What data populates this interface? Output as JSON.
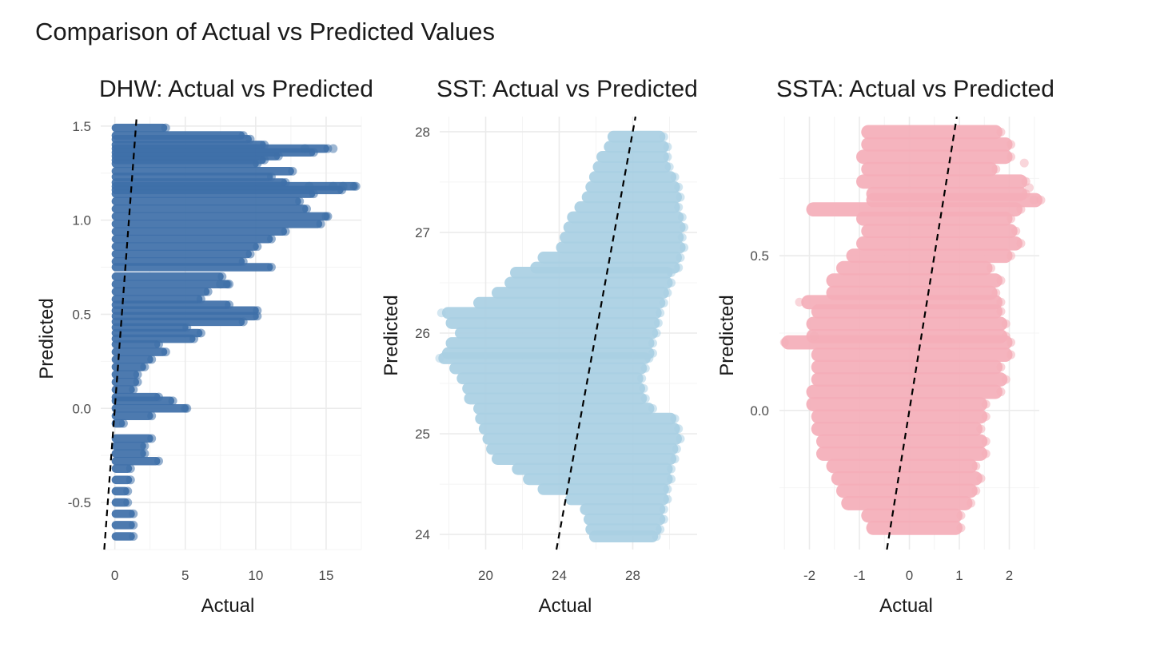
{
  "figure_title": "Comparison of Actual vs Predicted Values",
  "chart_data": [
    {
      "type": "scatter",
      "title": "DHW: Actual vs Predicted",
      "xlabel": "Actual",
      "ylabel": "Predicted",
      "xlim": [
        -1,
        17.5
      ],
      "ylim": [
        -0.75,
        1.55
      ],
      "xticks": [
        0,
        5,
        10,
        15
      ],
      "yticks": [
        -0.5,
        0.0,
        0.5,
        1.0,
        1.5
      ],
      "ytick_labels": [
        "-0.5",
        "0.0",
        "0.5",
        "1.0",
        "1.5"
      ],
      "grid": true,
      "color": "#3E6FA8",
      "reference_line": {
        "slope": 1,
        "intercept": 0,
        "style": "dashed"
      },
      "bands": [
        [
          1.49,
          0,
          3.5
        ],
        [
          1.45,
          0,
          9.0
        ],
        [
          1.43,
          0,
          9.5
        ],
        [
          1.4,
          0,
          10.5
        ],
        [
          1.38,
          0,
          15.0
        ],
        [
          1.36,
          0,
          14.0
        ],
        [
          1.34,
          0,
          11.5
        ],
        [
          1.32,
          0,
          10.5
        ],
        [
          1.3,
          0,
          10.0
        ],
        [
          1.26,
          0,
          12.5
        ],
        [
          1.23,
          0,
          11.0
        ],
        [
          1.2,
          0,
          12.0
        ],
        [
          1.18,
          0,
          17.0
        ],
        [
          1.16,
          0,
          16.0
        ],
        [
          1.14,
          0,
          14.0
        ],
        [
          1.1,
          0,
          13.0
        ],
        [
          1.06,
          0,
          13.5
        ],
        [
          1.02,
          0,
          15.0
        ],
        [
          0.98,
          0,
          14.5
        ],
        [
          0.94,
          0,
          12.0
        ],
        [
          0.9,
          0,
          11.0
        ],
        [
          0.86,
          0,
          10.0
        ],
        [
          0.82,
          0,
          9.5
        ],
        [
          0.78,
          0,
          9.0
        ],
        [
          0.75,
          0,
          11.0
        ],
        [
          0.7,
          0,
          7.5
        ],
        [
          0.66,
          0,
          8.0
        ],
        [
          0.62,
          0,
          6.5
        ],
        [
          0.58,
          0,
          6.0
        ],
        [
          0.55,
          0,
          8.0
        ],
        [
          0.52,
          0,
          10.0
        ],
        [
          0.49,
          0,
          10.0
        ],
        [
          0.46,
          0,
          9.0
        ],
        [
          0.43,
          0,
          5.0
        ],
        [
          0.4,
          0,
          6.0
        ],
        [
          0.37,
          0,
          5.5
        ],
        [
          0.34,
          0,
          3.0
        ],
        [
          0.3,
          0,
          3.5
        ],
        [
          0.26,
          0,
          2.5
        ],
        [
          0.22,
          0,
          2.0
        ],
        [
          0.18,
          0,
          1.5
        ],
        [
          0.14,
          0,
          1.5
        ],
        [
          0.1,
          0,
          1.2
        ],
        [
          0.06,
          0,
          3.0
        ],
        [
          0.04,
          0,
          4.0
        ],
        [
          0.0,
          0,
          5.0
        ],
        [
          -0.04,
          0,
          2.5
        ],
        [
          -0.08,
          0,
          0.5
        ],
        [
          -0.16,
          0,
          2.5
        ],
        [
          -0.2,
          0,
          2.0
        ],
        [
          -0.24,
          0,
          2.0
        ],
        [
          -0.28,
          0,
          3.0
        ],
        [
          -0.32,
          0,
          1.0
        ],
        [
          -0.38,
          0,
          1.0
        ],
        [
          -0.44,
          0,
          0.8
        ],
        [
          -0.5,
          0,
          0.8
        ],
        [
          -0.56,
          0,
          1.2
        ],
        [
          -0.62,
          0,
          1.2
        ],
        [
          -0.68,
          0,
          1.2
        ]
      ],
      "outliers": [
        [
          13.5,
          1.38
        ],
        [
          15.5,
          1.38
        ],
        [
          13.8,
          1.18
        ],
        [
          15.5,
          1.18
        ],
        [
          16.2,
          1.18
        ],
        [
          17.0,
          1.18
        ],
        [
          15.0,
          1.02
        ],
        [
          5.0,
          0.0
        ],
        [
          7.5,
          0.66
        ],
        [
          8.0,
          0.66
        ]
      ]
    },
    {
      "type": "scatter",
      "title": "SST: Actual vs Predicted",
      "xlabel": "Actual",
      "ylabel": "Predicted",
      "xlim": [
        17.5,
        31.5
      ],
      "ylim": [
        23.85,
        28.15
      ],
      "xticks": [
        20,
        24,
        28
      ],
      "yticks": [
        24,
        25,
        26,
        27,
        28
      ],
      "ytick_labels": [
        "24",
        "25",
        "26",
        "27",
        "28"
      ],
      "grid": true,
      "color": "#A9CFE3",
      "reference_line": {
        "slope": 1,
        "intercept": 0,
        "style": "dashed"
      },
      "bands": [
        [
          27.95,
          26.8,
          29.6
        ],
        [
          27.85,
          26.6,
          29.8
        ],
        [
          27.75,
          26.2,
          29.8
        ],
        [
          27.65,
          26.0,
          29.9
        ],
        [
          27.55,
          25.8,
          30.2
        ],
        [
          27.45,
          25.6,
          30.4
        ],
        [
          27.35,
          25.4,
          30.5
        ],
        [
          27.25,
          25.0,
          30.4
        ],
        [
          27.15,
          24.6,
          30.6
        ],
        [
          27.05,
          24.4,
          30.7
        ],
        [
          26.95,
          24.2,
          30.6
        ],
        [
          26.85,
          24.0,
          30.7
        ],
        [
          26.75,
          23.0,
          30.5
        ],
        [
          26.65,
          22.6,
          30.4
        ],
        [
          26.6,
          21.5,
          30.0
        ],
        [
          26.5,
          21.2,
          30.0
        ],
        [
          26.4,
          20.5,
          29.8
        ],
        [
          26.3,
          19.5,
          29.6
        ],
        [
          26.2,
          17.8,
          29.4
        ],
        [
          26.1,
          18.0,
          29.3
        ],
        [
          26.0,
          18.5,
          29.2
        ],
        [
          25.9,
          18.0,
          29.0
        ],
        [
          25.8,
          17.8,
          29.0
        ],
        [
          25.75,
          17.6,
          28.8
        ],
        [
          25.65,
          18.2,
          28.6
        ],
        [
          25.55,
          18.6,
          28.4
        ],
        [
          25.45,
          18.9,
          28.5
        ],
        [
          25.35,
          19.0,
          28.6
        ],
        [
          25.25,
          19.5,
          29.0
        ],
        [
          25.15,
          19.6,
          30.2
        ],
        [
          25.05,
          19.8,
          30.4
        ],
        [
          24.95,
          20.0,
          30.5
        ],
        [
          24.85,
          20.2,
          30.3
        ],
        [
          24.75,
          20.5,
          30.2
        ],
        [
          24.65,
          21.6,
          30.0
        ],
        [
          24.55,
          22.2,
          30.0
        ],
        [
          24.45,
          23.0,
          29.8
        ],
        [
          24.35,
          24.5,
          29.8
        ],
        [
          24.25,
          25.3,
          29.6
        ],
        [
          24.15,
          25.5,
          29.6
        ],
        [
          24.05,
          25.6,
          29.4
        ],
        [
          23.98,
          25.8,
          29.2
        ]
      ],
      "outliers": [
        [
          17.6,
          26.2
        ],
        [
          17.5,
          25.75
        ]
      ]
    },
    {
      "type": "scatter",
      "title": "SSTA: Actual vs Predicted",
      "xlabel": "Actual",
      "ylabel": "Predicted",
      "xlim": [
        -2.6,
        2.6
      ],
      "ylim": [
        -0.45,
        0.95
      ],
      "xticks": [
        -2,
        -1,
        0,
        1,
        2
      ],
      "yticks": [
        0.0,
        0.5
      ],
      "ytick_labels": [
        "0.0",
        "0.5"
      ],
      "grid": true,
      "color": "#F4AEB8",
      "reference_line": {
        "slope": 1,
        "intercept": 0,
        "style": "dashed"
      },
      "bands": [
        [
          0.9,
          -0.9,
          1.8
        ],
        [
          0.86,
          -0.9,
          2.0
        ],
        [
          0.82,
          -1.0,
          2.0
        ],
        [
          0.78,
          -0.9,
          1.7
        ],
        [
          0.74,
          -1.0,
          2.3
        ],
        [
          0.7,
          -0.8,
          2.3
        ],
        [
          0.68,
          -0.8,
          2.6
        ],
        [
          0.65,
          -2.0,
          2.2
        ],
        [
          0.62,
          -1.0,
          2.0
        ],
        [
          0.58,
          -0.9,
          2.1
        ],
        [
          0.54,
          -1.0,
          2.2
        ],
        [
          0.5,
          -1.2,
          2.0
        ],
        [
          0.46,
          -1.4,
          1.6
        ],
        [
          0.42,
          -1.6,
          1.8
        ],
        [
          0.38,
          -1.6,
          1.7
        ],
        [
          0.35,
          -2.1,
          1.8
        ],
        [
          0.32,
          -1.9,
          1.8
        ],
        [
          0.28,
          -2.0,
          1.9
        ],
        [
          0.24,
          -2.0,
          1.9
        ],
        [
          0.22,
          -2.5,
          2.0
        ],
        [
          0.18,
          -1.9,
          2.0
        ],
        [
          0.14,
          -1.9,
          1.8
        ],
        [
          0.1,
          -1.9,
          1.9
        ],
        [
          0.06,
          -2.0,
          1.8
        ],
        [
          0.02,
          -2.0,
          1.5
        ],
        [
          -0.02,
          -1.9,
          1.5
        ],
        [
          -0.06,
          -1.9,
          1.4
        ],
        [
          -0.1,
          -1.8,
          1.5
        ],
        [
          -0.14,
          -1.8,
          1.5
        ],
        [
          -0.18,
          -1.6,
          1.3
        ],
        [
          -0.22,
          -1.5,
          1.4
        ],
        [
          -0.26,
          -1.4,
          1.3
        ],
        [
          -0.3,
          -1.3,
          1.2
        ],
        [
          -0.34,
          -0.9,
          1.0
        ],
        [
          -0.38,
          -0.8,
          1.0
        ]
      ],
      "outliers": [
        [
          2.3,
          0.8
        ],
        [
          2.4,
          0.72
        ],
        [
          2.5,
          0.68
        ],
        [
          -2.2,
          0.35
        ],
        [
          -2.5,
          0.22
        ],
        [
          -1.9,
          0.24
        ]
      ]
    }
  ]
}
